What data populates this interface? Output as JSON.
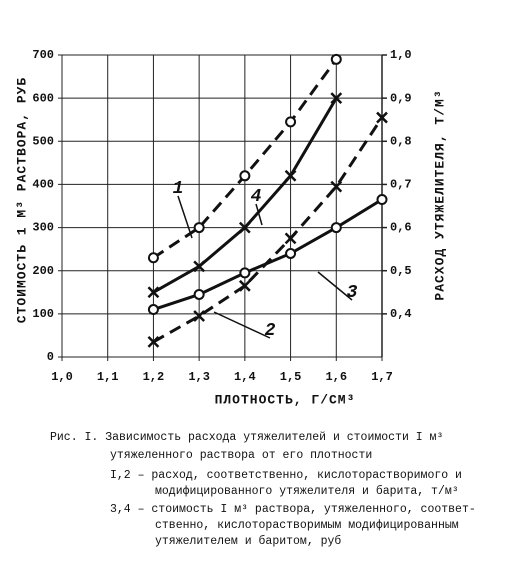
{
  "chart_data": {
    "type": "line",
    "xlabel": "ПЛОТНОСТЬ, Г/СМ³",
    "ylabel": "СТОИМОСТЬ 1 М³ РАСТВОРА, РУБ",
    "y2label": "РАСХОД УТЯЖЕЛИТЕЛЯ, Т/М³",
    "xlim": [
      1.0,
      1.7
    ],
    "xticks": [
      {
        "value": 1.0,
        "label": "1,0"
      },
      {
        "value": 1.1,
        "label": "1,1"
      },
      {
        "value": 1.2,
        "label": "1,2"
      },
      {
        "value": 1.3,
        "label": "1,3"
      },
      {
        "value": 1.4,
        "label": "1,4"
      },
      {
        "value": 1.5,
        "label": "1,5"
      },
      {
        "value": 1.6,
        "label": "1,6"
      },
      {
        "value": 1.7,
        "label": "1,7"
      }
    ],
    "ylim": [
      0,
      700
    ],
    "yticks": [
      0,
      100,
      200,
      300,
      400,
      500,
      600,
      700
    ],
    "y2lim": [
      0.3,
      1.0
    ],
    "y2ticks": [
      {
        "value": 0.4,
        "label": "0,4"
      },
      {
        "value": 0.5,
        "label": "0,5"
      },
      {
        "value": 0.6,
        "label": "0,6"
      },
      {
        "value": 0.7,
        "label": "0,7"
      },
      {
        "value": 0.8,
        "label": "0,8"
      },
      {
        "value": 0.9,
        "label": "0,9"
      },
      {
        "value": 1.0,
        "label": "1,0"
      }
    ],
    "grid": true,
    "series": [
      {
        "name": "1",
        "axis": "y2",
        "dashed": true,
        "marker": "circle",
        "color": "#111",
        "x": [
          1.2,
          1.3,
          1.4,
          1.5,
          1.6
        ],
        "values": [
          0.53,
          0.6,
          0.72,
          0.845,
          0.99
        ]
      },
      {
        "name": "2",
        "axis": "y2",
        "dashed": true,
        "marker": "cross",
        "color": "#111",
        "x": [
          1.2,
          1.3,
          1.4,
          1.5,
          1.6,
          1.7
        ],
        "values": [
          0.335,
          0.395,
          0.465,
          0.575,
          0.695,
          0.855
        ]
      },
      {
        "name": "3",
        "dashed": false,
        "marker": "circle",
        "color": "#111",
        "x": [
          1.2,
          1.3,
          1.4,
          1.5,
          1.6,
          1.7
        ],
        "values": [
          110,
          145,
          195,
          240,
          300,
          365
        ]
      },
      {
        "name": "4",
        "dashed": false,
        "marker": "cross",
        "color": "#111",
        "x": [
          1.2,
          1.3,
          1.4,
          1.5,
          1.6
        ],
        "values": [
          150,
          210,
          300,
          420,
          600
        ]
      }
    ]
  },
  "caption": [
    "Рис. I. Зависимость расхода утяжелителей и стоимости I м³",
    "утяжеленного раствора от его плотности",
    "I,2 – расход, соответственно, кислоторастворимого и",
    "модифицированного утяжелителя и барита, т/м³",
    "3,4 – стоимость I м³ раствора, утяжеленного, соответ-",
    "ственно, кислоторастворимым модифицированным",
    "утяжелителем и баритом, руб"
  ]
}
